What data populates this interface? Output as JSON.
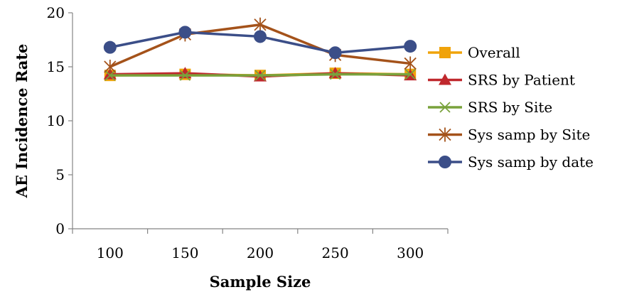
{
  "chart_data": {
    "type": "line",
    "title": "",
    "xlabel": "Sample Size",
    "ylabel": "AE Incidence Rate",
    "categories": [
      "100",
      "150",
      "200",
      "250",
      "300"
    ],
    "ylim": [
      0,
      20
    ],
    "yticks": [
      "0",
      "5",
      "10",
      "15",
      "20"
    ],
    "grid": false,
    "legend_position": "right",
    "series": [
      {
        "name": "Overall",
        "color": "#F0A30A",
        "marker": "square",
        "values": [
          14.2,
          14.3,
          14.2,
          14.4,
          14.3
        ]
      },
      {
        "name": "SRS by Patient",
        "color": "#C0282D",
        "marker": "triangle",
        "values": [
          14.3,
          14.4,
          14.1,
          14.4,
          14.2
        ]
      },
      {
        "name": "SRS by Site",
        "color": "#79A23C",
        "marker": "x",
        "values": [
          14.2,
          14.2,
          14.2,
          14.3,
          14.3
        ]
      },
      {
        "name": "Sys samp by Site",
        "color": "#A4521A",
        "marker": "star",
        "values": [
          15.0,
          18.0,
          18.9,
          16.1,
          15.3
        ]
      },
      {
        "name": "Sys samp by date",
        "color": "#3B4E88",
        "marker": "circle",
        "values": [
          16.8,
          18.2,
          17.8,
          16.3,
          16.9
        ]
      }
    ]
  }
}
